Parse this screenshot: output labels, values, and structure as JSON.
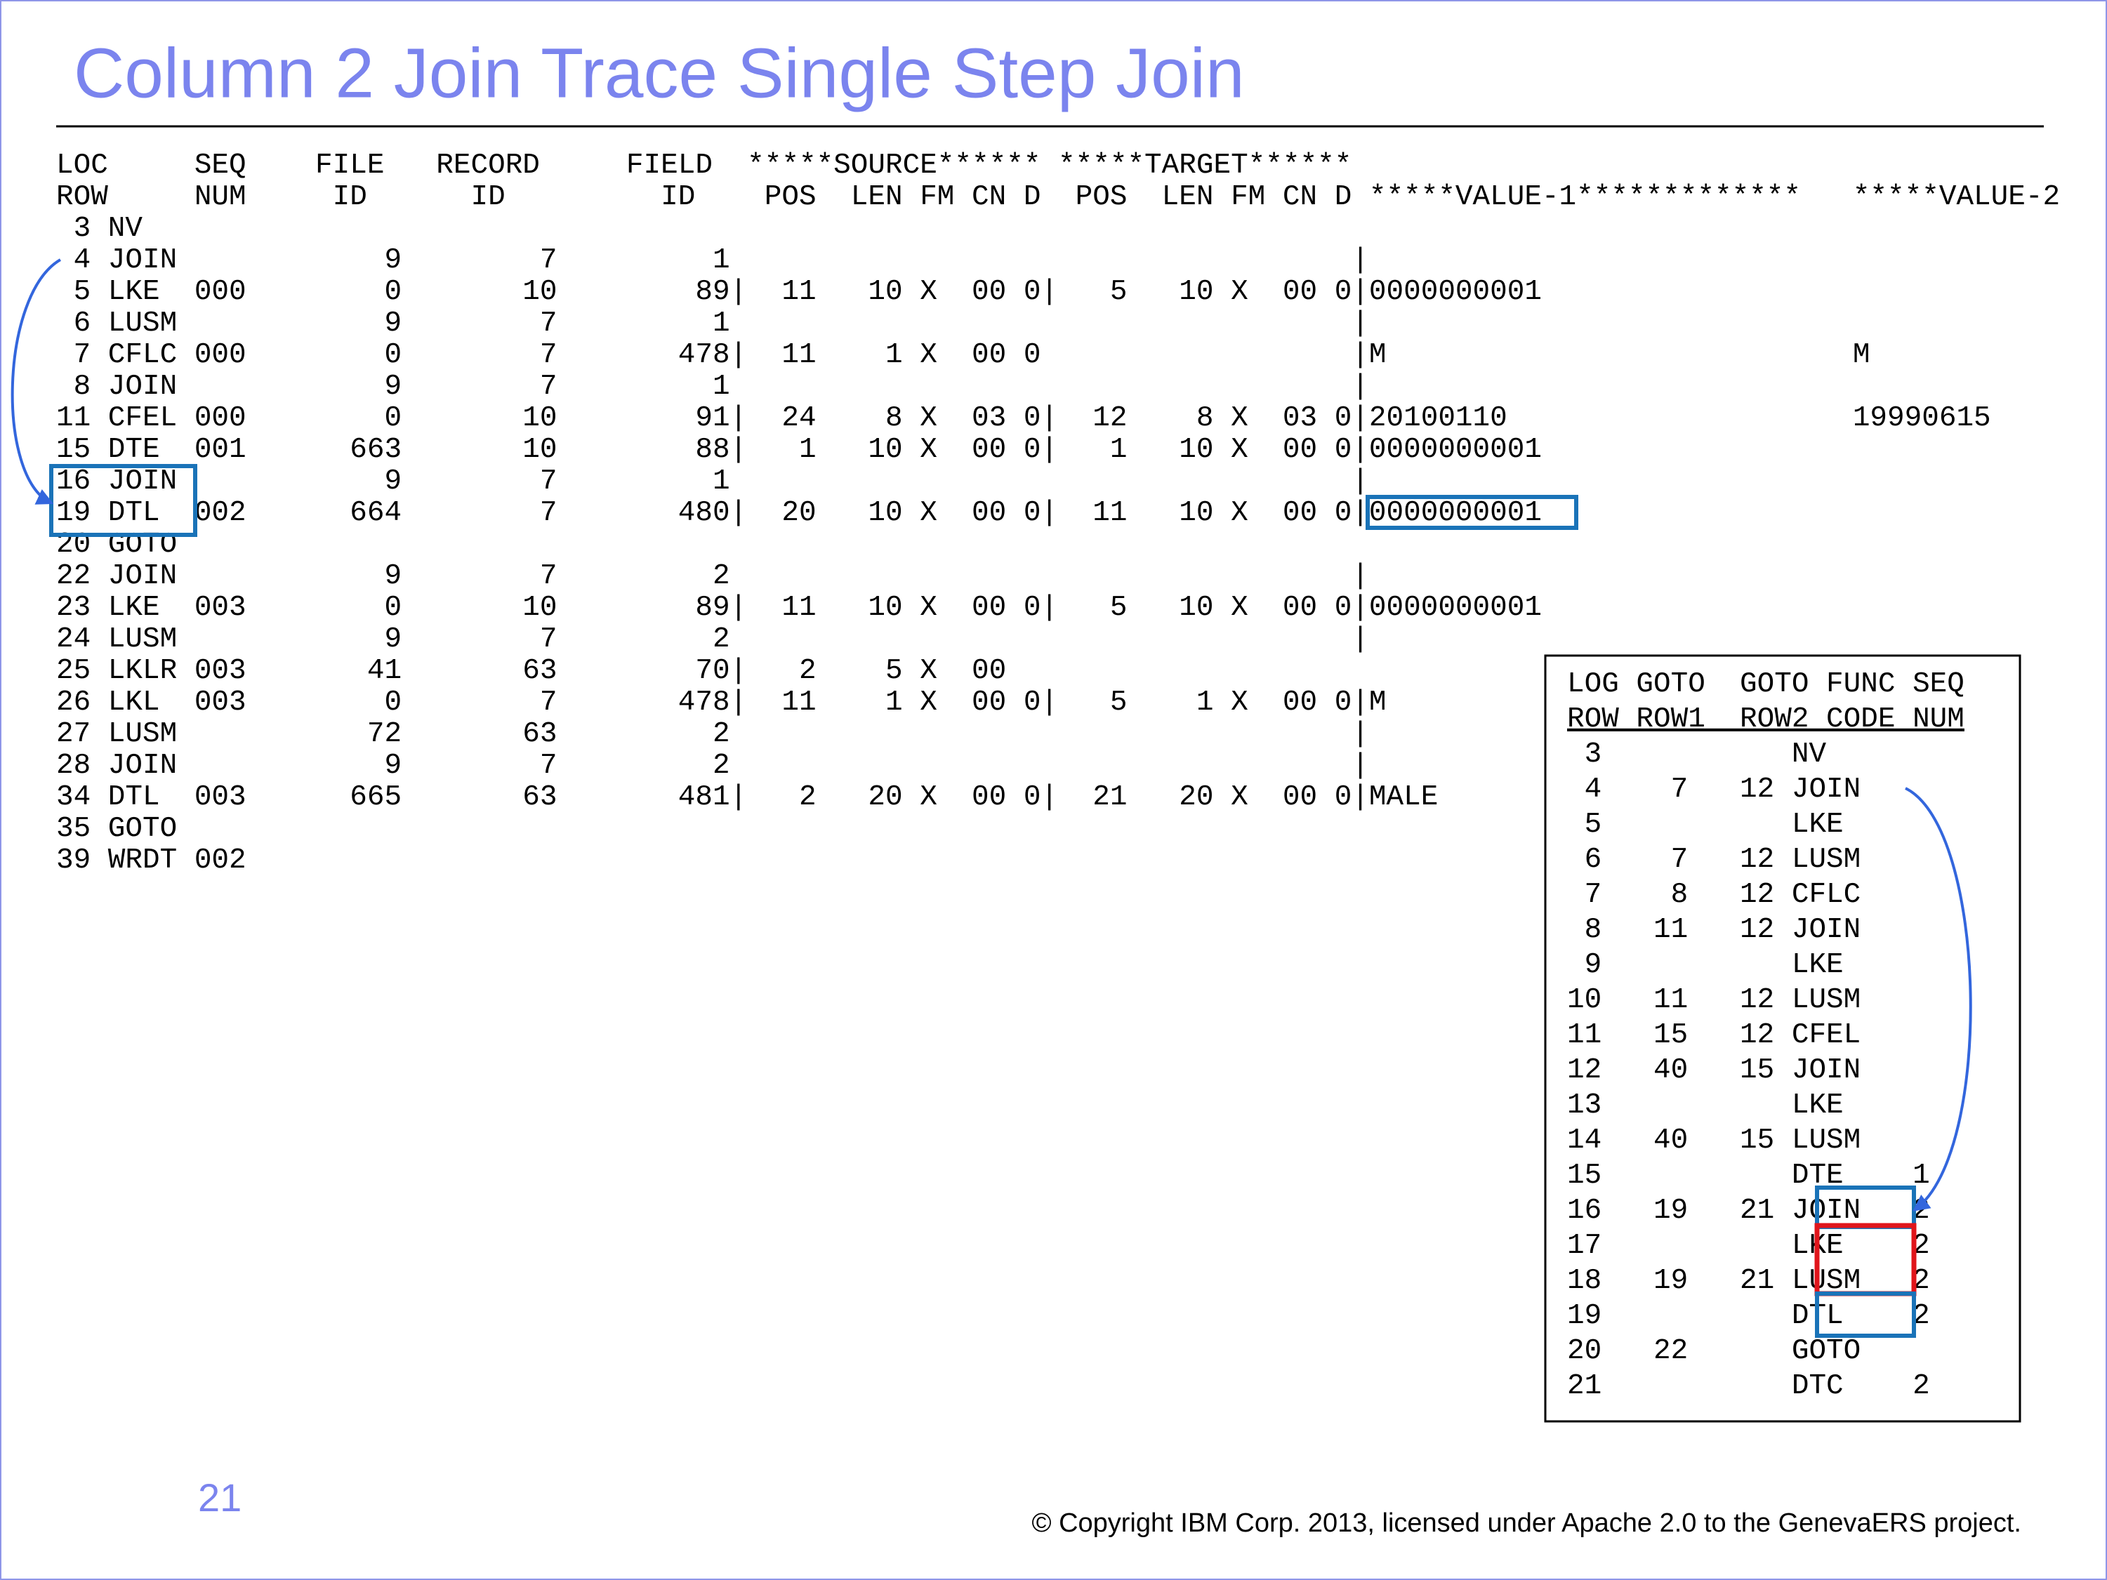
{
  "title": "Column 2 Join Trace Single Step Join",
  "trace": {
    "header": [
      "LOC     SEQ    FILE   RECORD     FIELD  *****SOURCE****** *****TARGET******",
      "ROW     NUM     ID      ID         ID    POS  LEN FM CN D  POS  LEN FM CN D *****VALUE-1*************   *****VALUE-2"
    ],
    "rows": [
      " 3 NV",
      " 4 JOIN            9        7         1                                    |",
      " 5 LKE  000        0       10        89|  11   10 X  00 0|   5   10 X  00 0|0000000001",
      " 6 LUSM            9        7         1                                    |",
      " 7 CFLC 000        0        7       478|  11    1 X  00 0                  |M                           M",
      " 8 JOIN            9        7         1                                    |",
      "11 CFEL 000        0       10        91|  24    8 X  03 0|  12    8 X  03 0|20100110                    19990615",
      "15 DTE  001      663       10        88|   1   10 X  00 0|   1   10 X  00 0|0000000001",
      "16 JOIN            9        7         1                                    |",
      "19 DTL  002      664        7       480|  20   10 X  00 0|  11   10 X  00 0|0000000001",
      "20 GOTO",
      "22 JOIN            9        7         2                                    |",
      "23 LKE  003        0       10        89|  11   10 X  00 0|   5   10 X  00 0|0000000001",
      "24 LUSM            9        7         2                                    |",
      "25 LKLR 003       41       63        70|   2    5 X  00",
      "26 LKL  003        0        7       478|  11    1 X  00 0|   5    1 X  00 0|M",
      "27 LUSM           72       63         2                                    |",
      "28 JOIN            9        7         2                                    |",
      "34 DTL  003      665       63       481|   2   20 X  00 0|  21   20 X  00 0|MALE",
      "35 GOTO",
      "39 WRDT 002"
    ]
  },
  "summary": {
    "header": [
      "LOG GOTO  GOTO FUNC SEQ",
      "ROW ROW1  ROW2 CODE NUM"
    ],
    "rows": [
      " 3           NV",
      " 4    7   12 JOIN",
      " 5           LKE",
      " 6    7   12 LUSM",
      " 7    8   12 CFLC",
      " 8   11   12 JOIN",
      " 9           LKE",
      "10   11   12 LUSM",
      "11   15   12 CFEL",
      "12   40   15 JOIN",
      "13           LKE",
      "14   40   15 LUSM",
      "15           DTE    1",
      "16   19   21 JOIN   2",
      "17           LKE    2",
      "18   19   21 LUSM   2",
      "19           DTL    2",
      "20   22      GOTO",
      "21           DTC    2"
    ]
  },
  "page_number": "21",
  "footer": "© Copyright IBM Corp. 2013, licensed under Apache 2.0 to the GenevaERS project."
}
